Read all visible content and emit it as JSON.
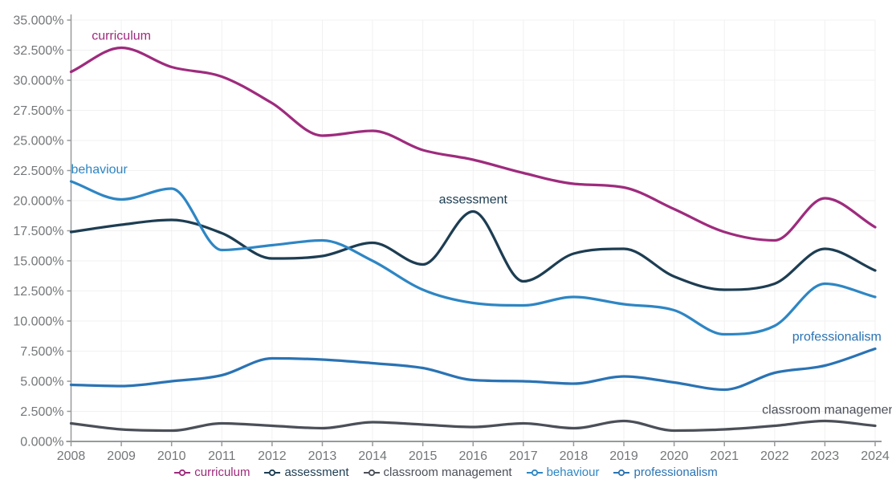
{
  "ui": {
    "background": "#ffffff",
    "grid_color": "#f1f1f1",
    "axis_line_color": "#97999b",
    "axis_text_color": "#74777a"
  },
  "chart_data": {
    "type": "line",
    "title": "",
    "xlabel": "",
    "ylabel": "",
    "grid": true,
    "legend_position": "bottom",
    "x": [
      2008,
      2009,
      2010,
      2011,
      2012,
      2013,
      2014,
      2015,
      2016,
      2017,
      2018,
      2019,
      2020,
      2021,
      2022,
      2023,
      2024
    ],
    "x_tick_labels": [
      "2008",
      "2009",
      "2010",
      "2011",
      "2012",
      "2013",
      "2014",
      "2015",
      "2016",
      "2017",
      "2018",
      "2019",
      "2020",
      "2021",
      "2022",
      "2023",
      "2024"
    ],
    "y_axis": {
      "min": 0,
      "max": 35,
      "step": 2.5,
      "unit": "%"
    },
    "y_tick_labels": [
      "0.000%",
      "2.500%",
      "5.000%",
      "7.500%",
      "10.000%",
      "12.500%",
      "15.000%",
      "17.500%",
      "20.000%",
      "22.500%",
      "25.000%",
      "27.500%",
      "30.000%",
      "32.500%",
      "35.000%"
    ],
    "series": [
      {
        "name": "curriculum",
        "color": "#9e2b7d",
        "values": [
          30.7,
          32.7,
          31.1,
          30.3,
          28.1,
          25.4,
          25.8,
          24.2,
          23.4,
          22.3,
          21.4,
          21.1,
          19.3,
          17.4,
          16.7,
          20.2,
          17.8
        ]
      },
      {
        "name": "assessment",
        "color": "#1d3d52",
        "values": [
          17.4,
          18.0,
          18.4,
          17.3,
          15.2,
          15.4,
          16.5,
          14.7,
          19.1,
          13.3,
          15.6,
          16.0,
          13.7,
          12.6,
          13.1,
          16.0,
          14.2
        ]
      },
      {
        "name": "classroom management",
        "color": "#4b4f58",
        "values": [
          1.5,
          1.0,
          0.9,
          1.5,
          1.3,
          1.1,
          1.6,
          1.4,
          1.2,
          1.5,
          1.1,
          1.7,
          0.9,
          1.0,
          1.3,
          1.7,
          1.3
        ]
      },
      {
        "name": "behaviour",
        "color": "#2e86c4",
        "values": [
          21.6,
          20.1,
          21.0,
          15.9,
          16.3,
          16.7,
          15.0,
          12.6,
          11.5,
          11.3,
          12.0,
          11.4,
          10.9,
          8.9,
          9.6,
          13.1,
          12.0
        ]
      },
      {
        "name": "professionalism",
        "color": "#2a73b4",
        "values": [
          4.7,
          4.6,
          5.0,
          5.5,
          6.9,
          6.8,
          6.5,
          6.1,
          5.1,
          5.0,
          4.8,
          5.4,
          4.9,
          4.3,
          5.7,
          6.3,
          7.7
        ]
      }
    ],
    "annotations": [
      {
        "series": "curriculum",
        "text": "curriculum",
        "x": 2009.0,
        "y": 33.7,
        "anchor": "middle"
      },
      {
        "series": "behaviour",
        "text": "behaviour",
        "x": 2008.0,
        "y": 22.6,
        "anchor": "start"
      },
      {
        "series": "assessment",
        "text": "assessment",
        "x": 2016.0,
        "y": 20.1,
        "anchor": "middle"
      },
      {
        "series": "professionalism",
        "text": "professionalism",
        "x": 2022.35,
        "y": 8.7,
        "anchor": "start"
      },
      {
        "series": "classroom management",
        "text": "classroom management",
        "x": 2021.75,
        "y": 2.65,
        "anchor": "start"
      }
    ]
  }
}
